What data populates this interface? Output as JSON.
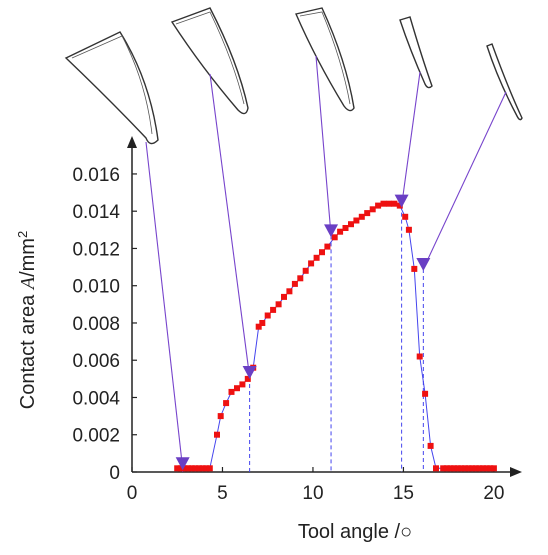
{
  "chart_data": {
    "type": "scatter",
    "xlabel": "Tool angle /○",
    "ylabel": {
      "prefix": "Contact area ",
      "symbol": "A",
      "unit": "/mm",
      "sup": "2"
    },
    "xlim": [
      0,
      21
    ],
    "ylim": [
      0,
      0.0175
    ],
    "xticks": [
      0,
      5,
      10,
      15,
      20
    ],
    "xtick_labels": [
      "0",
      "5",
      "10",
      "15",
      "20"
    ],
    "yticks": [
      0,
      0.002,
      0.004,
      0.006,
      0.008,
      0.01,
      0.012,
      0.014,
      0.016
    ],
    "ytick_labels": [
      "0",
      "0.002",
      "0.004",
      "0.006",
      "0.008",
      "0.010",
      "0.012",
      "0.014",
      "0.016"
    ],
    "marker_color": "#ee1111",
    "line_color": "#4444ee",
    "annotation_color": "#7744cc",
    "series": [
      {
        "x": [
          2.5,
          2.7,
          2.9,
          3.1,
          3.3,
          3.5,
          3.7,
          3.9,
          4.1,
          4.3,
          4.7,
          4.9,
          5.2,
          5.5,
          5.8,
          6.1,
          6.4,
          6.7,
          7.0,
          7.2,
          7.5,
          7.8,
          8.1,
          8.4,
          8.7,
          9.0,
          9.3,
          9.6,
          9.9,
          10.2,
          10.5,
          10.8,
          11.2,
          11.5,
          11.8,
          12.1,
          12.4,
          12.7,
          13.0,
          13.3,
          13.6,
          13.9,
          14.2,
          14.5,
          14.8,
          15.1,
          15.3,
          15.6,
          15.9,
          16.2,
          16.5,
          16.8,
          17.2,
          17.4,
          17.6,
          17.8,
          18.0,
          18.2,
          18.4,
          18.6,
          18.8,
          19.0,
          19.2,
          19.4,
          19.6,
          19.8,
          20.0
        ],
        "y": [
          0.0002,
          0.0002,
          0.0002,
          0.0002,
          0.0002,
          0.0002,
          0.0002,
          0.0002,
          0.0002,
          0.0002,
          0.002,
          0.003,
          0.0037,
          0.0043,
          0.0045,
          0.0047,
          0.005,
          0.0056,
          0.0078,
          0.008,
          0.0084,
          0.0087,
          0.009,
          0.0094,
          0.0097,
          0.0101,
          0.0104,
          0.0108,
          0.0112,
          0.0115,
          0.0118,
          0.0121,
          0.0126,
          0.0129,
          0.0131,
          0.0133,
          0.0135,
          0.0137,
          0.0139,
          0.0141,
          0.0143,
          0.0144,
          0.0144,
          0.0144,
          0.0143,
          0.0137,
          0.013,
          0.0109,
          0.0062,
          0.0042,
          0.0014,
          0.0002,
          0.0002,
          0.0002,
          0.0002,
          0.0002,
          0.0002,
          0.0002,
          0.0002,
          0.0002,
          0.0002,
          0.0002,
          0.0002,
          0.0002,
          0.0002,
          0.0002,
          0.0002
        ]
      }
    ],
    "annotations": [
      {
        "x": 2.8,
        "y": 0.0002,
        "icon": "tool-blade-icon-1"
      },
      {
        "x": 6.5,
        "y": 0.0051,
        "icon": "tool-blade-icon-2"
      },
      {
        "x": 11.0,
        "y": 0.0127,
        "icon": "tool-blade-icon-3"
      },
      {
        "x": 14.9,
        "y": 0.0143,
        "icon": "tool-blade-icon-4"
      },
      {
        "x": 16.1,
        "y": 0.0109,
        "icon": "tool-blade-icon-5"
      }
    ]
  }
}
